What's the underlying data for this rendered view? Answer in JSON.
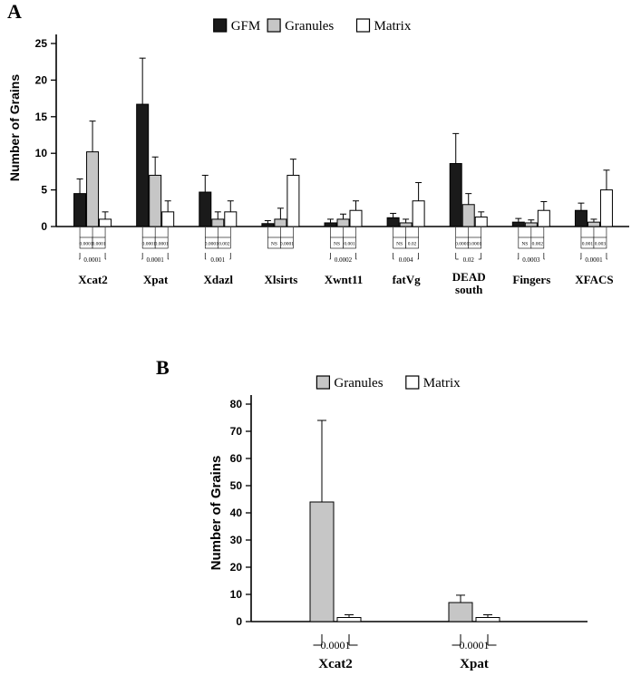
{
  "figure": {
    "panel_a_label": "A",
    "panel_b_label": "B"
  },
  "colors": {
    "gfm": "#1a1a1a",
    "granules": "#c6c6c6",
    "matrix": "#ffffff",
    "axis": "#000000"
  },
  "chart_data": [
    {
      "type": "bar",
      "panel_label": "A",
      "title": "",
      "ylabel": "Number of Grains",
      "xlabel": "",
      "ylim": [
        0,
        25
      ],
      "yticks": [
        0,
        5,
        10,
        15,
        20,
        25
      ],
      "legend_position": "top",
      "grid": false,
      "categories": [
        "Xcat2",
        "Xpat",
        "Xdazl",
        "Xlsirts",
        "Xwnt11",
        "fatVg",
        "DEAD south",
        "Fingers",
        "XFACS"
      ],
      "series": [
        {
          "name": "GFM",
          "color": "#1a1a1a",
          "values": [
            4.5,
            16.7,
            4.7,
            0.4,
            0.5,
            1.2,
            8.6,
            0.6,
            2.2
          ],
          "errors": [
            2.0,
            6.3,
            2.3,
            0.4,
            0.5,
            0.6,
            4.1,
            0.5,
            1.0
          ]
        },
        {
          "name": "Granules",
          "color": "#c6c6c6",
          "values": [
            10.2,
            7.0,
            1.0,
            1.0,
            1.0,
            0.5,
            3.0,
            0.5,
            0.6
          ],
          "errors": [
            4.2,
            2.5,
            1.0,
            1.5,
            0.7,
            0.5,
            1.5,
            0.4,
            0.4
          ]
        },
        {
          "name": "Matrix",
          "color": "#ffffff",
          "values": [
            1.0,
            2.0,
            2.0,
            7.0,
            2.2,
            3.5,
            1.3,
            2.2,
            5.0
          ],
          "errors": [
            1.0,
            1.5,
            1.5,
            2.2,
            1.3,
            2.5,
            0.7,
            1.2,
            2.7
          ]
        }
      ],
      "significance_pvalues": [
        {
          "gfm_vs_granules": "0.0001",
          "granules_vs_matrix": "0.0001",
          "gfm_vs_matrix": "0.0001"
        },
        {
          "gfm_vs_granules": "0.0001",
          "granules_vs_matrix": "0.0001",
          "gfm_vs_matrix": "0.0001"
        },
        {
          "gfm_vs_granules": "0.0001",
          "granules_vs_matrix": "0.002",
          "gfm_vs_matrix": "0.001"
        },
        {
          "gfm_vs_granules": "NS",
          "granules_vs_matrix": "0.0001",
          "gfm_vs_matrix": null
        },
        {
          "gfm_vs_granules": "NS",
          "granules_vs_matrix": "0.001",
          "gfm_vs_matrix": "0.0002"
        },
        {
          "gfm_vs_granules": "NS",
          "granules_vs_matrix": "0.02",
          "gfm_vs_matrix": "0.004"
        },
        {
          "gfm_vs_granules": "0.0001",
          "granules_vs_matrix": "0.0001",
          "gfm_vs_matrix": "0.02"
        },
        {
          "gfm_vs_granules": "NS",
          "granules_vs_matrix": "0.002",
          "gfm_vs_matrix": "0.0003"
        },
        {
          "gfm_vs_granules": "0.001",
          "granules_vs_matrix": "0.003",
          "gfm_vs_matrix": "0.0001"
        }
      ]
    },
    {
      "type": "bar",
      "panel_label": "B",
      "title": "",
      "ylabel": "Number of Grains",
      "xlabel": "",
      "ylim": [
        0,
        80
      ],
      "yticks": [
        0,
        10,
        20,
        30,
        40,
        50,
        60,
        70,
        80
      ],
      "legend_position": "top",
      "grid": false,
      "categories": [
        "Xcat2",
        "Xpat"
      ],
      "series": [
        {
          "name": "Granules",
          "color": "#c6c6c6",
          "values": [
            44,
            7
          ],
          "errors": [
            30,
            2.7
          ]
        },
        {
          "name": "Matrix",
          "color": "#ffffff",
          "values": [
            1.5,
            1.5
          ],
          "errors": [
            1.0,
            1.0
          ]
        }
      ],
      "significance_pvalues": [
        {
          "granules_vs_matrix": "0.0001"
        },
        {
          "granules_vs_matrix": "0.0001"
        }
      ]
    }
  ]
}
